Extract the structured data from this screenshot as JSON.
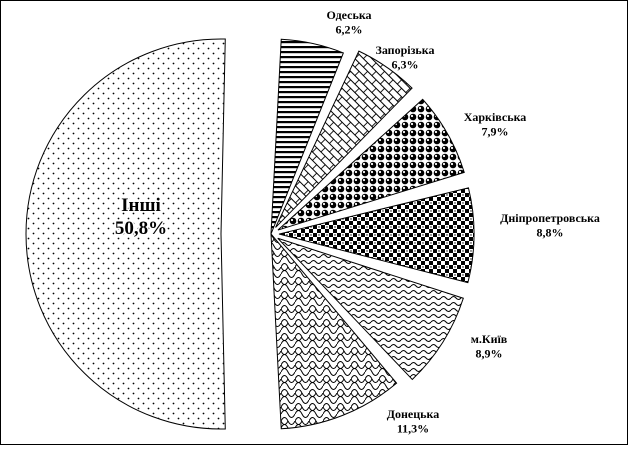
{
  "chart_data": {
    "type": "pie",
    "title": "",
    "slices": [
      {
        "label": "Інші",
        "percent_text": "50,8%",
        "value": 50.8,
        "pattern": "dots"
      },
      {
        "label": "Одеська",
        "percent_text": "6,2%",
        "value": 6.2,
        "pattern": "hstripes"
      },
      {
        "label": "Запорізька",
        "percent_text": "6,3%",
        "value": 6.3,
        "pattern": "brick"
      },
      {
        "label": "Харківська",
        "percent_text": "7,9%",
        "value": 7.9,
        "pattern": "spheres"
      },
      {
        "label": "Дніпропетровська",
        "percent_text": "8,8%",
        "value": 8.8,
        "pattern": "checker"
      },
      {
        "label": "м.Київ",
        "percent_text": "8,9%",
        "value": 8.9,
        "pattern": "waves"
      },
      {
        "label": "Донецька",
        "percent_text": "11,3%",
        "value": 11.3,
        "pattern": "scales"
      }
    ]
  }
}
